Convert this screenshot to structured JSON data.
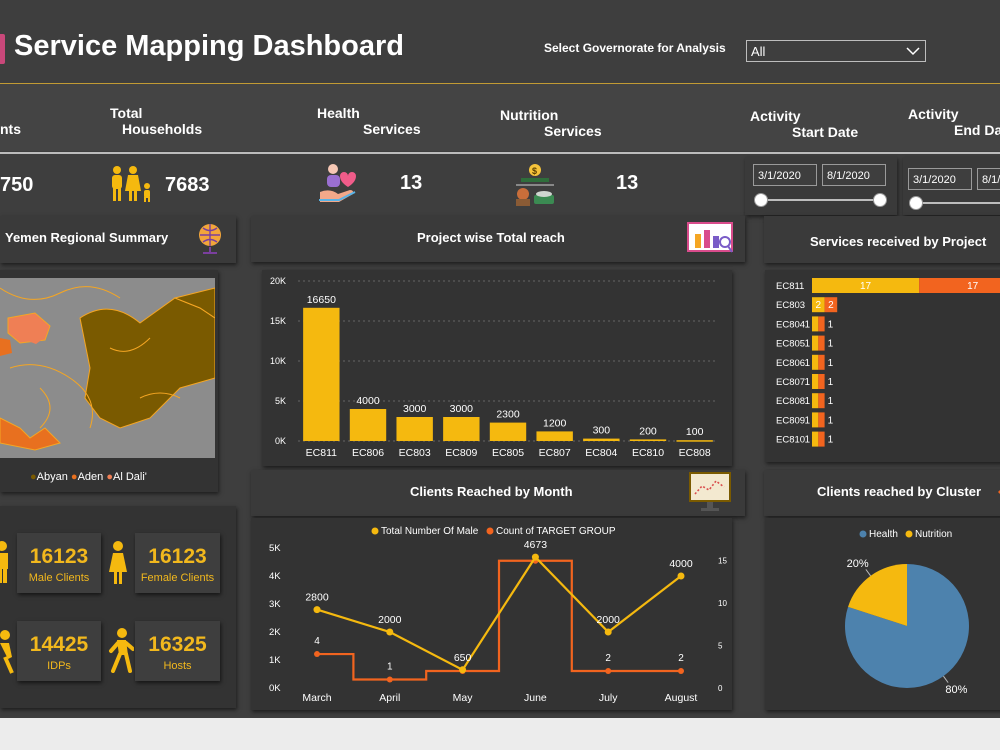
{
  "header": {
    "title": "Service Mapping Dashboard",
    "selector_label": "Select  Governorate for Analysis",
    "selector_value": "All"
  },
  "kpis": {
    "clients_label_fragment": "nts",
    "clients_value_fragment": "750",
    "households_label_line1": "Total",
    "households_label_line2": "Households",
    "households_value": "7683",
    "health_label_line1": "Health",
    "health_label_line2": "Services",
    "health_value": "13",
    "nutrition_label_line1": "Nutrition",
    "nutrition_label_line2": "Services",
    "nutrition_value": "13",
    "start_label_line1": "Activity",
    "start_label_line2": "Start Date",
    "end_label_line1": "Activity",
    "end_label_line2": "End Da",
    "start_from": "3/1/2020",
    "start_to": "8/1/2020",
    "end_from": "3/1/2020",
    "end_to": "8/1/"
  },
  "regional": {
    "title": "Yemen Regional Summary",
    "legend": [
      "Abyan",
      "Aden",
      "Al Dali'"
    ],
    "legend_colors": [
      "#7a5a00",
      "#e8701f",
      "#ef7f55"
    ]
  },
  "client_stats": [
    {
      "value": "16123",
      "label": "Male Clients"
    },
    {
      "value": "16123",
      "label": "Female Clients"
    },
    {
      "value": "14425",
      "label": "IDPs"
    },
    {
      "value": "16325",
      "label": "Hosts"
    }
  ],
  "colors": {
    "gold": "#f5b90f",
    "orange": "#f2641f",
    "blue": "#4d82ad"
  },
  "chart_data": [
    {
      "type": "bar",
      "title": "Project wise Total reach",
      "categories": [
        "EC811",
        "EC806",
        "EC803",
        "EC809",
        "EC805",
        "EC807",
        "EC804",
        "EC810",
        "EC808"
      ],
      "values": [
        16650,
        4000,
        3000,
        3000,
        2300,
        1200,
        300,
        200,
        100
      ],
      "data_labels": [
        "16650",
        "4000",
        "3000",
        "3000",
        "2300",
        "1200",
        "300",
        "200",
        "100"
      ],
      "ylim": [
        0,
        20000
      ],
      "yticks": [
        0,
        5000,
        10000,
        15000,
        20000
      ],
      "ytick_labels": [
        "0K",
        "5K",
        "10K",
        "15K",
        "20K"
      ],
      "gridlines": true
    },
    {
      "type": "line",
      "title": "Clients Reached by Month",
      "categories": [
        "March",
        "April",
        "May",
        "June",
        "July",
        "August"
      ],
      "series": [
        {
          "name": "Total Number Of Male",
          "values": [
            2800,
            2000,
            650,
            4673,
            2000,
            4000
          ],
          "labels": [
            "2800",
            "2000",
            "650",
            "4673",
            "2000",
            "4000"
          ],
          "axis": "left"
        },
        {
          "name": "Count of TARGET GROUP",
          "values": [
            4,
            1,
            2,
            15,
            2,
            2
          ],
          "labels": [
            "4",
            "1",
            "",
            "",
            "2",
            "2"
          ],
          "axis": "right",
          "style": "step"
        }
      ],
      "ylim_left": [
        0,
        5000
      ],
      "yticks_left": [
        "0K",
        "1K",
        "2K",
        "3K",
        "4K",
        "5K"
      ],
      "ylim_right": [
        0,
        16.5
      ],
      "yticks_right": [
        "0",
        "5",
        "10",
        "15"
      ],
      "legend_position": "top"
    },
    {
      "type": "bar",
      "orientation": "horizontal-stacked",
      "title": "Services received by Project",
      "categories": [
        "EC811",
        "EC803",
        "EC804",
        "EC805",
        "EC806",
        "EC807",
        "EC808",
        "EC809",
        "EC810"
      ],
      "series": [
        {
          "name": "Health",
          "values": [
            17,
            2,
            1,
            1,
            1,
            1,
            1,
            1,
            1
          ]
        },
        {
          "name": "Nutrition",
          "values": [
            17,
            2,
            1,
            1,
            1,
            1,
            1,
            1,
            1
          ]
        }
      ]
    },
    {
      "type": "pie",
      "title": "Clients reached by Cluster",
      "labels": [
        "Health",
        "Nutrition"
      ],
      "values": [
        80,
        20
      ],
      "value_labels": [
        "80%",
        "20%"
      ],
      "legend_position": "top"
    }
  ]
}
